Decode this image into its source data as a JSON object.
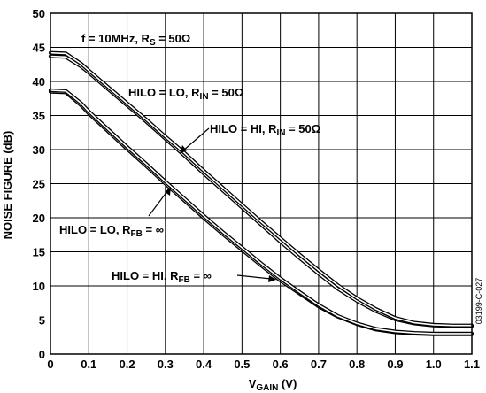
{
  "chart_data": {
    "type": "line",
    "title": "",
    "xlabel": {
      "main": "V",
      "sub": "GAIN",
      "suffix": " (V)"
    },
    "ylabel": "NOISE FIGURE (dB)",
    "xlim": [
      0,
      1.1
    ],
    "ylim": [
      0,
      50
    ],
    "x_ticks": [
      "0",
      "0.1",
      "0.2",
      "0.3",
      "0.4",
      "0.5",
      "0.6",
      "0.7",
      "0.8",
      "0.9",
      "1.0",
      "1.1"
    ],
    "y_ticks": [
      "0",
      "5",
      "10",
      "15",
      "20",
      "25",
      "30",
      "35",
      "40",
      "45",
      "50"
    ],
    "grid": true,
    "condition": {
      "prefix": "f = 10MHz, R",
      "sub": "S",
      "suffix": " = 50Ω"
    },
    "figure_code": "03199-C-027",
    "series": [
      {
        "label": {
          "prefix": "HILO = LO, R",
          "sub": "IN",
          "suffix": " = 50Ω"
        },
        "x": [
          0,
          0.04,
          0.08,
          0.1,
          0.15,
          0.2,
          0.25,
          0.3,
          0.35,
          0.4,
          0.45,
          0.5,
          0.55,
          0.6,
          0.65,
          0.7,
          0.75,
          0.8,
          0.85,
          0.9,
          0.95,
          1.0,
          1.05,
          1.1
        ],
        "y": [
          43.7,
          43.6,
          42.2,
          41.3,
          38.9,
          36.5,
          34.1,
          31.6,
          29.1,
          26.5,
          24.0,
          21.5,
          19.0,
          16.5,
          14.1,
          11.8,
          9.6,
          7.8,
          6.3,
          5.1,
          4.5,
          4.2,
          4.1,
          4.1
        ]
      },
      {
        "label": {
          "prefix": "HILO = HI, R",
          "sub": "IN",
          "suffix": " = 50Ω"
        },
        "x": [
          0,
          0.04,
          0.08,
          0.1,
          0.15,
          0.2,
          0.25,
          0.3,
          0.35,
          0.4,
          0.45,
          0.5,
          0.55,
          0.6,
          0.65,
          0.7,
          0.75,
          0.8,
          0.85,
          0.9,
          0.95,
          1.0,
          1.05,
          1.1
        ],
        "y": [
          44.2,
          44.1,
          42.6,
          41.6,
          39.2,
          36.8,
          34.4,
          31.9,
          29.5,
          26.9,
          24.4,
          21.9,
          19.4,
          17.0,
          14.6,
          12.3,
          10.1,
          8.2,
          6.6,
          5.3,
          4.6,
          4.3,
          4.2,
          4.2
        ]
      },
      {
        "label": {
          "prefix": "HILO = LO, R",
          "sub": "FB",
          "suffix": " = ∞"
        },
        "x": [
          0,
          0.04,
          0.08,
          0.1,
          0.15,
          0.2,
          0.25,
          0.3,
          0.35,
          0.4,
          0.45,
          0.5,
          0.55,
          0.6,
          0.65,
          0.7,
          0.75,
          0.8,
          0.85,
          0.9,
          0.95,
          1.0,
          1.05,
          1.1
        ],
        "y": [
          38.5,
          38.4,
          36.5,
          35.3,
          32.7,
          30.1,
          27.6,
          25.0,
          22.5,
          20.0,
          17.6,
          15.3,
          13.0,
          10.8,
          8.9,
          7.0,
          5.5,
          4.4,
          3.6,
          3.2,
          3.0,
          2.9,
          2.9,
          2.9
        ]
      },
      {
        "label": {
          "prefix": "HILO = HI, R",
          "sub": "FB",
          "suffix": " = ∞"
        },
        "x": [
          0,
          0.04,
          0.08,
          0.1,
          0.15,
          0.2,
          0.25,
          0.3,
          0.35,
          0.4,
          0.45,
          0.5,
          0.55,
          0.6,
          0.65,
          0.7,
          0.75,
          0.8,
          0.85,
          0.9,
          0.95,
          1.0,
          1.05,
          1.1
        ],
        "y": [
          38.7,
          38.6,
          36.8,
          35.6,
          33.0,
          30.4,
          27.9,
          25.3,
          22.8,
          20.3,
          17.9,
          15.6,
          13.3,
          11.1,
          9.1,
          7.2,
          5.6,
          4.5,
          3.7,
          3.3,
          3.1,
          3.0,
          3.0,
          3.0
        ]
      }
    ]
  }
}
